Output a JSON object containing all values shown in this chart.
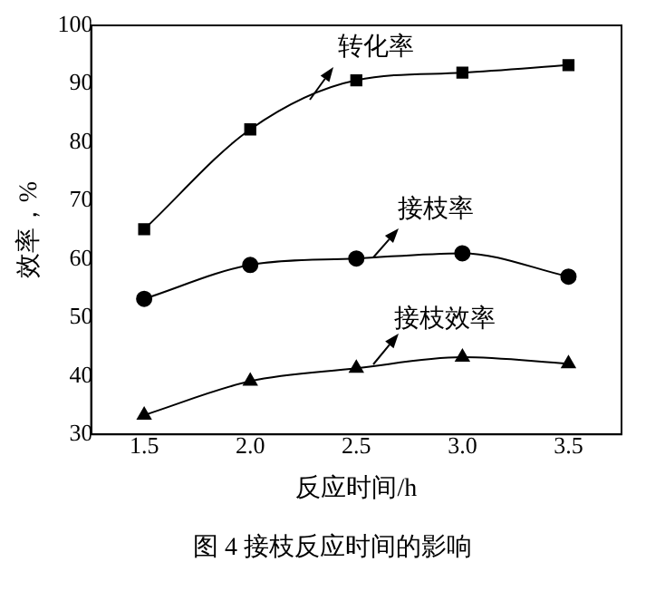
{
  "chart_data": {
    "type": "line",
    "xlabel": "反应时间/h",
    "ylabel": "效率，%",
    "x": [
      1.5,
      2.0,
      2.5,
      3.0,
      3.5
    ],
    "xlim": [
      1.25,
      3.75
    ],
    "xticks": [
      1.5,
      {
        "value": 2,
        "label": "2.0"
      },
      2.5,
      {
        "value": 3,
        "label": "3.0"
      },
      3.5
    ],
    "ylim": [
      30,
      100
    ],
    "yticks": [
      30,
      40,
      50,
      60,
      70,
      80,
      90,
      100
    ],
    "series": [
      {
        "name": "转化率",
        "color": "#000000",
        "marker": "square",
        "values": [
          65.1,
          82.2,
          90.6,
          91.9,
          93.2
        ]
      },
      {
        "name": "接枝率",
        "color": "#000000",
        "marker": "circle",
        "values": [
          53.2,
          59,
          60.1,
          61,
          57
        ]
      },
      {
        "name": "接枝效率",
        "color": "#000000",
        "marker": "triangle",
        "values": [
          33.3,
          39.1,
          41.3,
          43.2,
          42.1
        ]
      }
    ],
    "grid": false,
    "legend": false,
    "annotations": [
      "图 4  接枝反应时间的影响"
    ]
  }
}
